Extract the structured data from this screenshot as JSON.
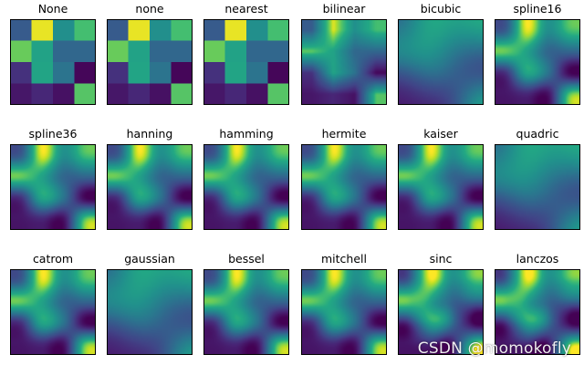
{
  "chart_data": {
    "type": "heatmap",
    "title": "",
    "colormap": "viridis",
    "grid_shape": [
      4,
      4
    ],
    "values": [
      [
        0.36,
        0.98,
        0.62,
        0.82
      ],
      [
        0.86,
        0.72,
        0.42,
        0.42
      ],
      [
        0.18,
        0.73,
        0.48,
        0.02
      ],
      [
        0.08,
        0.14,
        0.06,
        0.84
      ]
    ],
    "panels": [
      {
        "interpolation": "None",
        "mode": "nearest"
      },
      {
        "interpolation": "none",
        "mode": "nearest"
      },
      {
        "interpolation": "nearest",
        "mode": "nearest"
      },
      {
        "interpolation": "bilinear",
        "mode": "bilinear"
      },
      {
        "interpolation": "bicubic",
        "mode": "blur"
      },
      {
        "interpolation": "spline16",
        "mode": "cubic"
      },
      {
        "interpolation": "spline36",
        "mode": "cubic"
      },
      {
        "interpolation": "hanning",
        "mode": "cubic"
      },
      {
        "interpolation": "hamming",
        "mode": "cubic"
      },
      {
        "interpolation": "hermite",
        "mode": "cubic"
      },
      {
        "interpolation": "kaiser",
        "mode": "cubic"
      },
      {
        "interpolation": "quadric",
        "mode": "blur"
      },
      {
        "interpolation": "catrom",
        "mode": "cubic"
      },
      {
        "interpolation": "gaussian",
        "mode": "blur"
      },
      {
        "interpolation": "bessel",
        "mode": "cubic"
      },
      {
        "interpolation": "mitchell",
        "mode": "cubic"
      },
      {
        "interpolation": "sinc",
        "mode": "sharp"
      },
      {
        "interpolation": "lanczos",
        "mode": "sharp"
      }
    ],
    "axes_ticks": "none",
    "layout": "3 rows x 6 columns"
  },
  "watermark": "CSDN @momokofly"
}
